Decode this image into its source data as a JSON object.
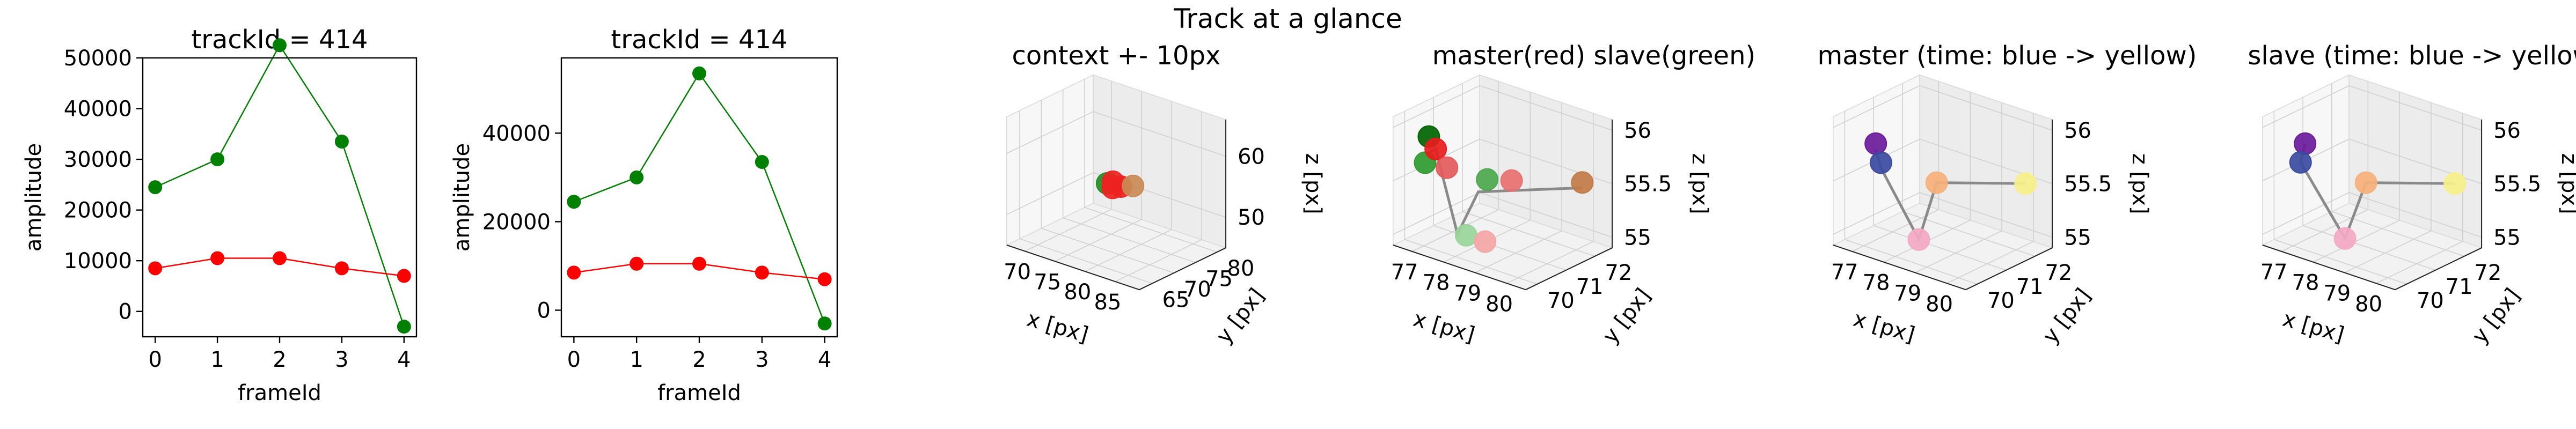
{
  "figure": {
    "suptitle": "Track at a glance"
  },
  "chart_data": [
    {
      "type": "line",
      "title": "trackId = 414",
      "xlabel": "frameId",
      "ylabel": "amplitude",
      "x": [
        0,
        1,
        2,
        3,
        4
      ],
      "xlim": [
        -0.2,
        4.2
      ],
      "ylim": [
        -5000,
        50000
      ],
      "xticks": [
        0,
        1,
        2,
        3,
        4
      ],
      "yticks": [
        0,
        10000,
        20000,
        30000,
        40000,
        50000
      ],
      "series": [
        {
          "color": "#008000",
          "values": [
            24500,
            30000,
            52500,
            33500,
            -3000
          ]
        },
        {
          "color": "#ff0000",
          "values": [
            8500,
            10500,
            10500,
            8500,
            7000
          ]
        }
      ]
    },
    {
      "type": "line",
      "title": "trackId = 414",
      "xlabel": "frameId",
      "ylabel": "amplitude",
      "x": [
        0,
        1,
        2,
        3,
        4
      ],
      "xlim": [
        -0.2,
        4.2
      ],
      "ylim": [
        -6000,
        57000
      ],
      "xticks": [
        0,
        1,
        2,
        3,
        4
      ],
      "yticks": [
        0,
        20000,
        40000
      ],
      "series": [
        {
          "color": "#008000",
          "values": [
            24500,
            30000,
            53500,
            33500,
            -3000
          ]
        },
        {
          "color": "#ff0000",
          "values": [
            8500,
            10500,
            10500,
            8500,
            7000
          ]
        }
      ]
    },
    {
      "type": "scatter3d",
      "title": "context +- 10px",
      "xlabel": "x [px]",
      "ylabel": "y [px]",
      "zlabel": "z [px]",
      "xlim": [
        67,
        89
      ],
      "ylim": [
        62,
        82
      ],
      "zlim": [
        45,
        66
      ],
      "xticks": [
        70,
        75,
        80,
        85
      ],
      "yticks": [
        65,
        70,
        75,
        80
      ],
      "zticks": [
        50,
        60
      ],
      "path": [
        [
          78.2,
          70.6,
          55.2
        ],
        [
          77.4,
          71.2,
          55.6
        ],
        [
          78.6,
          70.2,
          55.4
        ],
        [
          79.5,
          71.8,
          55.3
        ],
        [
          80.5,
          72.4,
          55.6
        ]
      ],
      "points": [
        {
          "x": 77.2,
          "y": 71.0,
          "z": 55.4,
          "color": "#1f8f1f"
        },
        {
          "x": 77.8,
          "y": 71.5,
          "z": 55.7,
          "color": "#ee2222"
        },
        {
          "x": 78.4,
          "y": 70.6,
          "z": 55.2,
          "color": "#ee2222"
        },
        {
          "x": 79.2,
          "y": 71.4,
          "z": 55.4,
          "color": "#ee2222"
        },
        {
          "x": 80.5,
          "y": 72.4,
          "z": 55.6,
          "color": "#c98a55"
        }
      ]
    },
    {
      "type": "scatter3d",
      "title": "master(red) slave(green)",
      "zlabel": "z [px]",
      "xlabel": "x [px]",
      "ylabel": "y [px]",
      "xlim": [
        76.4,
        80.6
      ],
      "ylim": [
        69.6,
        72.6
      ],
      "zlim": [
        54.9,
        56.1
      ],
      "xticks": [
        77,
        78,
        79,
        80
      ],
      "yticks": [
        70,
        71,
        72
      ],
      "zticks": [
        55.0,
        55.5,
        56.0
      ],
      "path": [
        [
          76.8,
          70.4,
          55.7
        ],
        [
          77.2,
          70.2,
          55.8
        ],
        [
          77.8,
          70.3,
          55.05
        ],
        [
          78.0,
          70.8,
          55.4
        ],
        [
          80.2,
          72.0,
          55.5
        ]
      ],
      "points": [
        {
          "x": 76.5,
          "y": 70.6,
          "z": 55.55,
          "color": "#2e9b2e"
        },
        {
          "x": 76.8,
          "y": 70.4,
          "z": 55.85,
          "color": "#006400"
        },
        {
          "x": 77.2,
          "y": 70.2,
          "z": 55.8,
          "color": "#e81c1c"
        },
        {
          "x": 77.1,
          "y": 70.7,
          "z": 55.55,
          "color": "#e35a5a"
        },
        {
          "x": 77.8,
          "y": 70.6,
          "z": 55.0,
          "color": "#9ad59a"
        },
        {
          "x": 78.1,
          "y": 71.0,
          "z": 55.5,
          "color": "#4ca84c"
        },
        {
          "x": 78.4,
          "y": 70.6,
          "z": 55.0,
          "color": "#f4a6a6"
        },
        {
          "x": 78.6,
          "y": 71.3,
          "z": 55.5,
          "color": "#e77070"
        },
        {
          "x": 80.2,
          "y": 72.0,
          "z": 55.55,
          "color": "#c27a45"
        }
      ]
    },
    {
      "type": "scatter3d",
      "title": "master (time: blue -> yellow)",
      "xlabel": "x [px]",
      "ylabel": "y [px]",
      "zlabel": "z [px]",
      "xlim": [
        76.4,
        80.6
      ],
      "ylim": [
        69.6,
        72.6
      ],
      "zlim": [
        54.9,
        56.1
      ],
      "xticks": [
        77,
        78,
        79,
        80
      ],
      "yticks": [
        70,
        71,
        72
      ],
      "zticks": [
        55.0,
        55.5,
        56.0
      ],
      "path": [
        [
          77.2,
          70.2,
          55.8
        ],
        [
          77.0,
          70.6,
          55.55
        ],
        [
          78.2,
          70.6,
          55.0
        ],
        [
          78.4,
          71.0,
          55.5
        ],
        [
          80.3,
          72.0,
          55.55
        ]
      ],
      "points": [
        {
          "x": 77.2,
          "y": 70.2,
          "z": 55.85,
          "color": "#6a1a9a"
        },
        {
          "x": 77.0,
          "y": 70.6,
          "z": 55.6,
          "color": "#3a4aa0"
        },
        {
          "x": 78.2,
          "y": 70.6,
          "z": 55.0,
          "color": "#f4a8c4"
        },
        {
          "x": 78.4,
          "y": 71.0,
          "z": 55.5,
          "color": "#f6b07a"
        },
        {
          "x": 80.3,
          "y": 72.0,
          "z": 55.55,
          "color": "#f7f08a"
        }
      ]
    },
    {
      "type": "scatter3d",
      "title": "slave (time: blue -> yellow)",
      "xlabel": "x [px]",
      "ylabel": "y [px]",
      "zlabel": "z [px]",
      "xlim": [
        76.4,
        80.6
      ],
      "ylim": [
        69.6,
        72.6
      ],
      "zlim": [
        54.9,
        56.1
      ],
      "xticks": [
        77,
        78,
        79,
        80
      ],
      "yticks": [
        70,
        71,
        72
      ],
      "zticks": [
        55.0,
        55.5,
        56.0
      ],
      "path": [
        [
          77.2,
          70.2,
          55.85
        ],
        [
          76.6,
          70.7,
          55.55
        ],
        [
          78.1,
          70.6,
          55.0
        ],
        [
          78.4,
          71.0,
          55.5
        ],
        [
          80.3,
          72.0,
          55.55
        ]
      ],
      "points": [
        {
          "x": 77.2,
          "y": 70.2,
          "z": 55.85,
          "color": "#6a1a9a"
        },
        {
          "x": 76.6,
          "y": 70.7,
          "z": 55.55,
          "color": "#3a4aa0"
        },
        {
          "x": 78.1,
          "y": 70.6,
          "z": 55.0,
          "color": "#f4a8c4"
        },
        {
          "x": 78.4,
          "y": 71.0,
          "z": 55.5,
          "color": "#f6b07a"
        },
        {
          "x": 80.3,
          "y": 72.0,
          "z": 55.55,
          "color": "#f7f08a"
        }
      ]
    }
  ]
}
